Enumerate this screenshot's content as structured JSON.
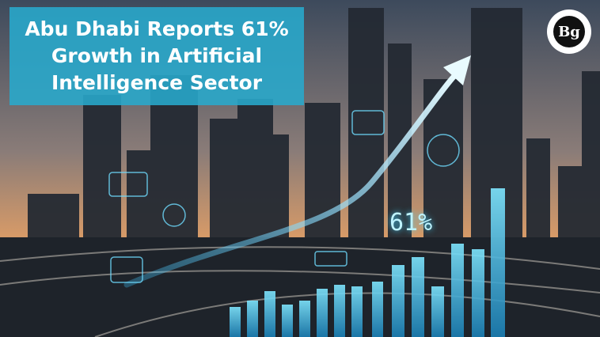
{
  "headline": "Abu Dhabi Reports 61% Growth in Artificial Intelligence Sector",
  "logo": "Bg",
  "overlay_figure": "61%"
}
